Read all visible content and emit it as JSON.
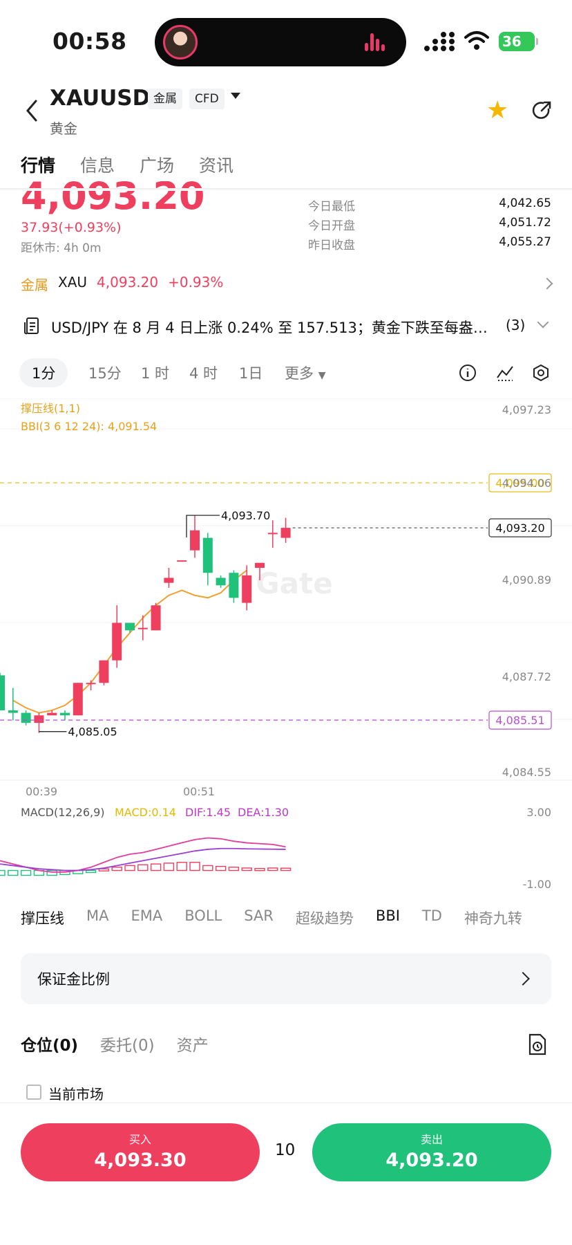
{
  "status_bar": {
    "time": "00:58",
    "battery": "36"
  },
  "header": {
    "symbol": "XAUUSD",
    "tag_metal": "金属",
    "tag_cfd": "CFD",
    "subtitle": "黄金"
  },
  "tabs": [
    {
      "label": "行情"
    },
    {
      "label": "信息"
    },
    {
      "label": "广场"
    },
    {
      "label": "资讯"
    }
  ],
  "quote": {
    "last": "4,093.20",
    "change": "37.93(+0.93%)",
    "closed_text": "距休市: 4h 0m",
    "stats": [
      {
        "label": "今日最低",
        "value": "4,042.65"
      },
      {
        "label": "今日开盘",
        "value": "4,051.72"
      },
      {
        "label": "昨日收盘",
        "value": "4,055.27"
      }
    ]
  },
  "metal_row": {
    "category": "金属",
    "code": "XAU",
    "price": "4,093.20",
    "pct": "+0.93%"
  },
  "news": {
    "text": "USD/JPY 在 8 月 4 日上涨 0.24% 至 157.513；黄金下跌至每盎…",
    "count": "(3)"
  },
  "intervals": [
    {
      "label": "1分"
    },
    {
      "label": "15分"
    },
    {
      "label": "1 时"
    },
    {
      "label": "4 时"
    },
    {
      "label": "1日"
    },
    {
      "label": "更多"
    }
  ],
  "chart_data": {
    "type": "candlestick",
    "overlay_labels": {
      "sr": "撑压线(1,1)",
      "bbi": "BBI(3 6 12 24): 4,091.54"
    },
    "y_ticks": [
      "4,097.23",
      "4,094.06",
      "4,090.89",
      "4,087.72",
      "4,084.55"
    ],
    "x_ticks": [
      "00:39",
      "00:51"
    ],
    "watermark": "Gate",
    "resistance": {
      "value": 4095.0,
      "label": "4,095.00",
      "color": "#e8b400"
    },
    "support": {
      "value": 4085.51,
      "label": "4,085.51",
      "color": "#b84fd1"
    },
    "last_price": {
      "value": 4093.2,
      "label": "4,093.20"
    },
    "high_mark": {
      "value": 4093.7,
      "label": "4,093.70"
    },
    "low_mark": {
      "value": 4085.05,
      "label": "4,085.05"
    },
    "y_range": [
      4083.3,
      4098.1
    ],
    "candles": [
      {
        "o": 4087.3,
        "h": 4087.4,
        "l": 4085.9,
        "c": 4085.9
      },
      {
        "o": 4085.9,
        "h": 4086.8,
        "l": 4085.5,
        "c": 4085.8
      },
      {
        "o": 4085.8,
        "h": 4085.9,
        "l": 4085.3,
        "c": 4085.4
      },
      {
        "o": 4085.4,
        "h": 4085.8,
        "l": 4085.0,
        "c": 4085.7
      },
      {
        "o": 4085.7,
        "h": 4085.9,
        "l": 4085.7,
        "c": 4085.8
      },
      {
        "o": 4085.8,
        "h": 4085.9,
        "l": 4085.5,
        "c": 4085.7
      },
      {
        "o": 4085.7,
        "h": 4087.0,
        "l": 4085.7,
        "c": 4087.0
      },
      {
        "o": 4087.0,
        "h": 4087.1,
        "l": 4086.7,
        "c": 4087.0
      },
      {
        "o": 4087.0,
        "h": 4087.9,
        "l": 4086.9,
        "c": 4087.9
      },
      {
        "o": 4087.9,
        "h": 4090.1,
        "l": 4087.6,
        "c": 4089.4
      },
      {
        "o": 4089.4,
        "h": 4089.4,
        "l": 4089.0,
        "c": 4089.1
      },
      {
        "o": 4089.2,
        "h": 4089.7,
        "l": 4088.7,
        "c": 4089.2
      },
      {
        "o": 4089.1,
        "h": 4090.2,
        "l": 4089.1,
        "c": 4090.1
      },
      {
        "o": 4091.0,
        "h": 4091.6,
        "l": 4090.8,
        "c": 4091.2
      },
      {
        "o": 4091.9,
        "h": 4091.9,
        "l": 4091.9,
        "c": 4091.9
      },
      {
        "o": 4092.3,
        "h": 4093.7,
        "l": 4092.0,
        "c": 4093.1
      },
      {
        "o": 4092.8,
        "h": 4093.0,
        "l": 4090.9,
        "c": 4091.4
      },
      {
        "o": 4091.2,
        "h": 4091.3,
        "l": 4090.8,
        "c": 4090.9
      },
      {
        "o": 4091.4,
        "h": 4091.5,
        "l": 4090.2,
        "c": 4090.4
      },
      {
        "o": 4090.2,
        "h": 4091.7,
        "l": 4089.9,
        "c": 4091.3
      },
      {
        "o": 4091.6,
        "h": 4091.8,
        "l": 4091.1,
        "c": 4091.8
      },
      {
        "o": 4093.0,
        "h": 4093.5,
        "l": 4092.4,
        "c": 4093.0
      },
      {
        "o": 4092.8,
        "h": 4093.6,
        "l": 4092.6,
        "c": 4093.2
      }
    ],
    "bbi_line": [
      4086.3,
      4086.0,
      4085.8,
      4085.9,
      4086.1,
      4086.5,
      4087.0,
      4087.7,
      4088.4,
      4089.0,
      4089.6,
      4090.1,
      4090.5,
      4090.7,
      4090.5,
      4090.4,
      4090.6,
      4091.1,
      4091.5
    ],
    "macd": {
      "label": "MACD(12,26,9)",
      "macd_label": "MACD:0.14",
      "dif_label": "DIF:1.45",
      "dea_label": "DEA:1.30",
      "y_ticks": [
        "3.00",
        "-1.00"
      ],
      "y_range": [
        -1.0,
        3.0
      ],
      "hist": [
        -0.3,
        -0.3,
        -0.3,
        -0.3,
        -0.3,
        -0.25,
        -0.2,
        -0.1,
        0.1,
        0.2,
        0.3,
        0.35,
        0.4,
        0.45,
        0.5,
        0.5,
        0.3,
        0.25,
        0.2,
        0.15,
        0.12,
        0.15,
        0.14
      ],
      "dif": [
        0.6,
        0.4,
        0.2,
        0.0,
        -0.1,
        -0.1,
        0.0,
        0.2,
        0.5,
        0.8,
        1.0,
        1.1,
        1.3,
        1.5,
        1.7,
        1.9,
        2.0,
        1.95,
        1.8,
        1.7,
        1.65,
        1.6,
        1.45
      ],
      "dea": [
        0.4,
        0.3,
        0.2,
        0.1,
        0.05,
        0.0,
        0.0,
        0.05,
        0.15,
        0.3,
        0.45,
        0.6,
        0.75,
        0.9,
        1.05,
        1.2,
        1.3,
        1.35,
        1.35,
        1.33,
        1.32,
        1.31,
        1.3
      ]
    }
  },
  "indicator_tabs": [
    {
      "label": "撑压线"
    },
    {
      "label": "MA"
    },
    {
      "label": "EMA"
    },
    {
      "label": "BOLL"
    },
    {
      "label": "SAR"
    },
    {
      "label": "超级趋势"
    },
    {
      "label": "BBI"
    },
    {
      "label": "TD"
    },
    {
      "label": "神奇九转"
    }
  ],
  "margin_card": {
    "label": "保证金比例"
  },
  "position_tabs": [
    {
      "label": "仓位(0)"
    },
    {
      "label": "委托(0)"
    },
    {
      "label": "资产"
    }
  ],
  "filter": {
    "label": "当前市场"
  },
  "order": {
    "buy_label": "买入",
    "buy_price": "4,093.30",
    "quantity": "10",
    "sell_label": "卖出",
    "sell_price": "4,093.20"
  },
  "colors": {
    "up": "#ef3f5e",
    "down": "#1fc17b",
    "bbi": "#f0a030"
  }
}
